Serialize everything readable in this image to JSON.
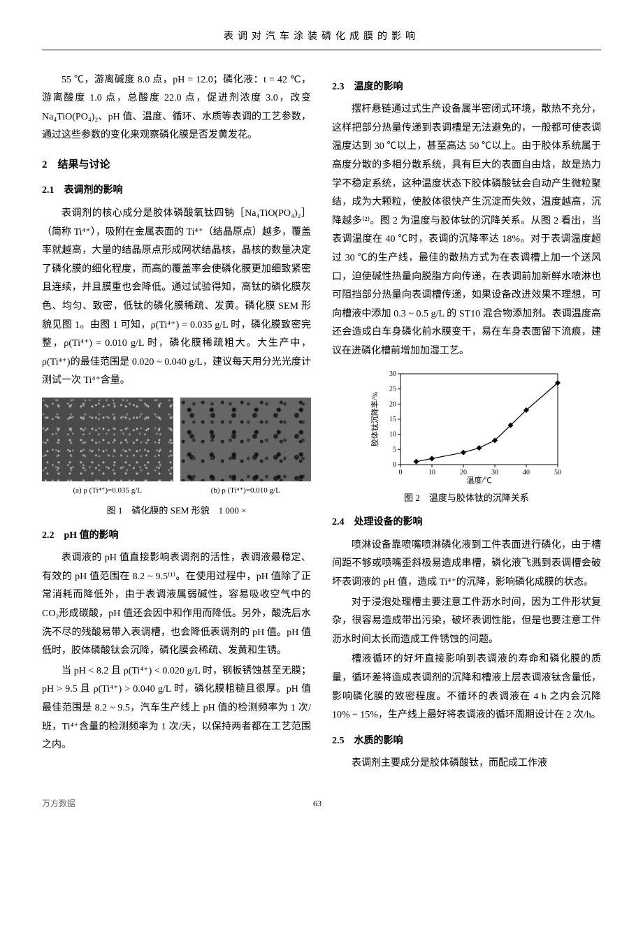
{
  "header": {
    "running_title": "表调对汽车涂装磷化成膜的影响"
  },
  "left": {
    "intro_para": "55 ℃，游离碱度 8.0 点，pH = 12.0；磷化液：t = 42 ℃，游离酸度 1.0 点，总酸度 22.0 点，促进剂浓度 3.0，改变 Na₄TiO(PO₄)₂、pH 值、温度、循环、水质等表调的工艺参数，通过这些参数的变化来观察磷化膜是否发黄发花。",
    "sec2": "2　结果与讨论",
    "sec21": "2.1　表调剂的影响",
    "p21": "表调剂的核心成分是胶体磷酸氧钛四钠［Na₄TiO(PO₄)₂］（简称 Ti⁴⁺），吸附在金属表面的 Ti⁴⁺（结晶原点）越多，覆盖率就越高，大量的结晶原点形成网状结晶核，晶核的数量决定了磷化膜的细化程度，而高的覆盖率会使磷化膜更加细致紧密且连续，并且膜重也会降低。通过试验得知，高钛的磷化膜灰色、均匀、致密，低钛的磷化膜稀疏、发黄。磷化膜 SEM 形貌见图 1。由图 1 可知，ρ(Ti⁴⁺) = 0.035 g/L 时，磷化膜致密完整，ρ(Ti⁴⁺) = 0.010 g/L 时，磷化膜稀疏粗大。大生产中，ρ(Ti⁴⁺)的最佳范围是 0.020 ~ 0.040 g/L，建议每天用分光光度计测试一次 Ti⁴⁺含量。",
    "fig1": {
      "cap_a": "(a) ρ (Ti⁴⁺)=0.035 g/L",
      "cap_b": "(b) ρ (Ti⁴⁺)=0.010 g/L",
      "caption": "图 1　磷化膜的 SEM 形貌　1 000 ×"
    },
    "sec22": "2.2　pH 值的影响",
    "p22a": "表调液的 pH 值直接影响表调剂的活性，表调液最稳定、有效的 pH 值范围在 8.2 ~ 9.5⁽¹⁾。在使用过程中，pH 值除了正常消耗而降低外，由于表调液属弱碱性，容易吸收空气中的 CO₂形成碳酸，pH 值还会因中和作用而降低。另外，酸洗后水洗不尽的残酸易带入表调槽，也会降低表调剂的 pH 值。pH 值低时，胶体磷酸钛会沉降，磷化膜会稀疏、发黄和生锈。",
    "p22b": "当 pH < 8.2 且 ρ(Ti⁴⁺) < 0.020 g/L 时，钢板锈蚀甚至无膜；pH > 9.5 且 ρ(Ti⁴⁺) > 0.040 g/L 时，磷化膜粗糙且很厚。pH 值最佳范围是 8.2 ~ 9.5，汽车生产线上 pH 值的检测频率为 1 次/班，Ti⁴⁺含量的检测频率为 1 次/天，以保持两者都在工艺范围之内。"
  },
  "right": {
    "sec23": "2.3　温度的影响",
    "p23a": "摆杆悬链通过式生产设备属半密闭式环境，散热不充分，这样把部分热量传递到表调槽是无法避免的，一般都可使表调温度达到 30 ℃以上，甚至高达 50 ℃以上。由于胶体系统属于高度分散的多相分散系统，具有巨大的表面自由焓，故是热力学不稳定系统，这种温度状态下胶体磷酸钛会自动产生微粒聚结，成为大颗粒，使胶体很快产生沉淀而失效，温度越高，沉降越多⁽²⁾。图 2 为温度与胶体钛的沉降关系。从图 2 看出，当表调温度在 40 ℃时，表调的沉降率达 18%。对于表调温度超过 30 ℃的生产线，最佳的散热方式为在表调槽上加一个送风口，迫使碱性热量向脱脂方向传递，在表调前加新鲜水喷淋也可阻挡部分热量向表调槽传递，如果设备改进效果不理想，可向槽液中添加 0.3 ~ 0.5 g/L 的 ST10 混合物添加剂。表调温度高还会造成白车身磷化前水膜变干，易在车身表面留下流痕，建议在进磷化槽前增加加湿工艺。",
    "fig2": {
      "caption": "图 2　温度与胶体钛的沉降关系",
      "xlabel": "温度/℃",
      "ylabel": "胶体钛沉降率/%",
      "x_ticks": [
        0,
        10,
        20,
        30,
        40,
        50
      ],
      "y_ticks": [
        0,
        5,
        10,
        15,
        20,
        25,
        30
      ],
      "data_x": [
        5,
        10,
        20,
        25,
        30,
        35,
        40,
        50
      ],
      "data_y": [
        1,
        2,
        4,
        5.5,
        8,
        13,
        18,
        27
      ],
      "line_color": "#000000",
      "marker": "diamond",
      "marker_size": 4,
      "bg_color": "#ffffff"
    },
    "sec24": "2.4　处理设备的影响",
    "p24a": "喷淋设备靠喷嘴喷淋磷化液到工件表面进行磷化，由于槽间距不够或喷嘴歪斜极易造成串槽，磷化液飞溅到表调槽会破坏表调液的 pH 值，造成 Ti⁴⁺的沉降，影响磷化成膜的状态。",
    "p24b": "对于浸泡处理槽主要注意工件沥水时间，因为工件形状复杂，很容易造成带出污染，破坏表调性能，但是也要注意工件沥水时间太长而造成工件锈蚀的问题。",
    "p24c": "槽液循环的好坏直接影响到表调液的寿命和磷化膜的质量，循环差将造成表调剂的沉降和槽液上层表调液钛含量低，影响磷化膜的致密程度。不循环的表调液在 4 h 之内会沉降 10% ~ 15%，生产线上最好将表调液的循环周期设计在 2 次/h。",
    "sec25": "2.5　水质的影响",
    "p25": "表调剂主要成分是胶体磷酸钛，而配成工作液"
  },
  "footer": {
    "left": "万方数据",
    "page": "63"
  }
}
